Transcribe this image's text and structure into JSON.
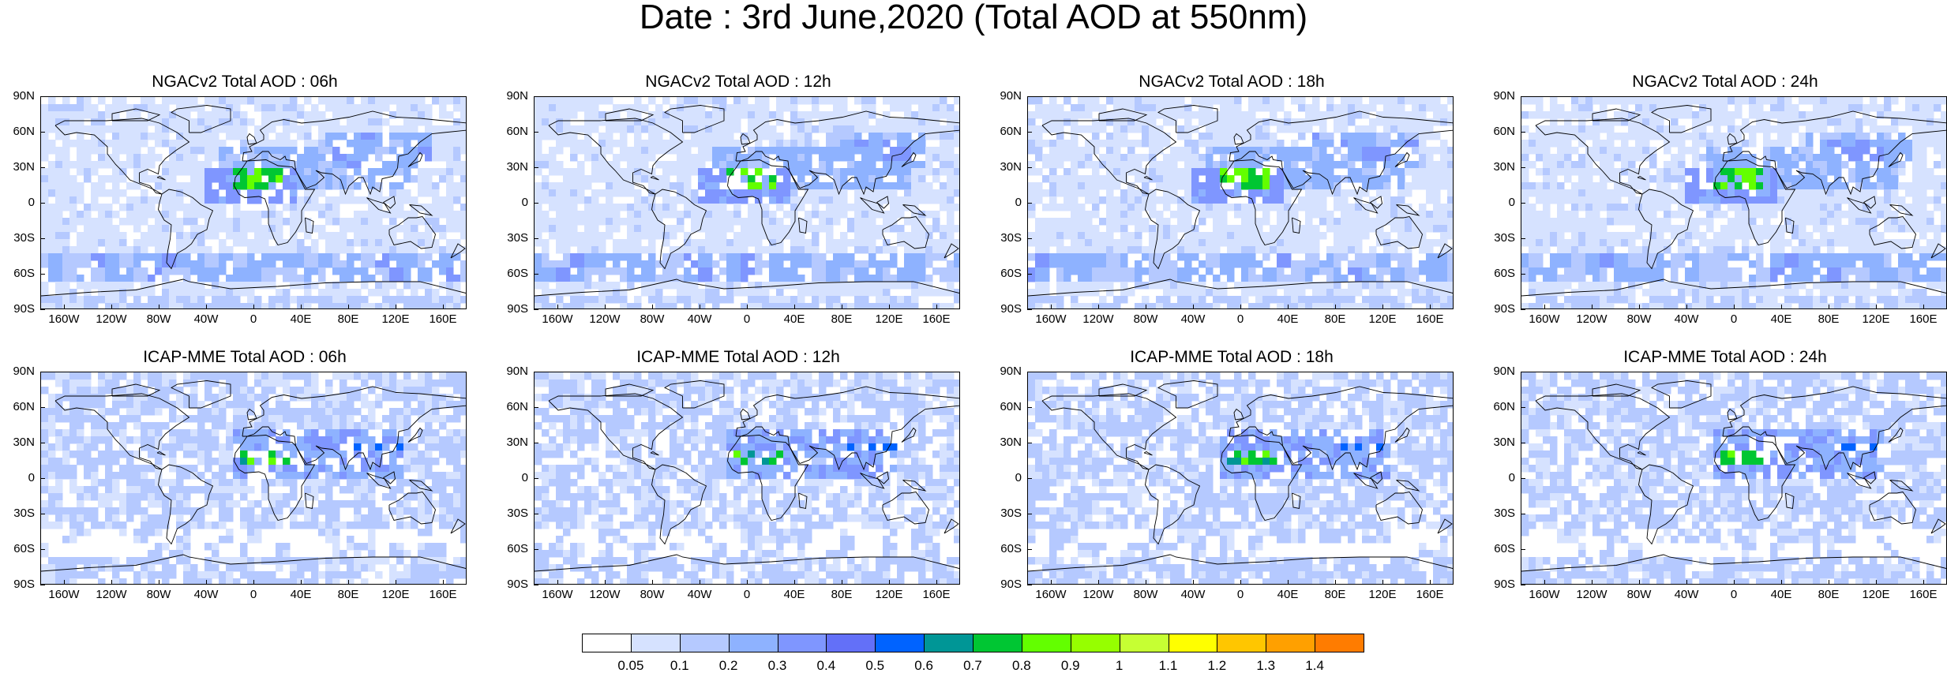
{
  "figure_title": "Date : 3rd June,2020 (Total AOD at 550nm)",
  "panels": [
    {
      "title": "NGACv2 Total AOD : 06h",
      "model": "ngac"
    },
    {
      "title": "NGACv2 Total AOD : 12h",
      "model": "ngac"
    },
    {
      "title": "NGACv2 Total AOD : 18h",
      "model": "ngac"
    },
    {
      "title": "NGACv2 Total AOD : 24h",
      "model": "ngac"
    },
    {
      "title": "ICAP-MME Total AOD : 06h",
      "model": "icap"
    },
    {
      "title": "ICAP-MME Total AOD : 12h",
      "model": "icap"
    },
    {
      "title": "ICAP-MME Total AOD : 18h",
      "model": "icap"
    },
    {
      "title": "ICAP-MME Total AOD : 24h",
      "model": "icap"
    }
  ],
  "lat_labels": [
    "90N",
    "60N",
    "30N",
    "0",
    "30S",
    "60S",
    "90S"
  ],
  "lon_labels": [
    "160W",
    "120W",
    "80W",
    "40W",
    "0",
    "40E",
    "80E",
    "120E",
    "160E"
  ],
  "lon_values": [
    -160,
    -120,
    -80,
    -40,
    0,
    40,
    80,
    120,
    160
  ],
  "lat_values": [
    90,
    60,
    30,
    0,
    -30,
    -60,
    -90
  ],
  "colorbar": {
    "labels": [
      "0.05",
      "0.1",
      "0.2",
      "0.3",
      "0.4",
      "0.5",
      "0.6",
      "0.7",
      "0.8",
      "0.9",
      "1",
      "1.1",
      "1.2",
      "1.3",
      "1.4"
    ],
    "colors": [
      "#ffffff",
      "#d6e2ff",
      "#b5c9ff",
      "#8eb2ff",
      "#7f96ff",
      "#6370f8",
      "#0063ff",
      "#009696",
      "#00c633",
      "#63ff00",
      "#96ff00",
      "#c6ff33",
      "#ffff00",
      "#ffc600",
      "#ffa000",
      "#ff7c00",
      "#ff1900"
    ]
  }
}
